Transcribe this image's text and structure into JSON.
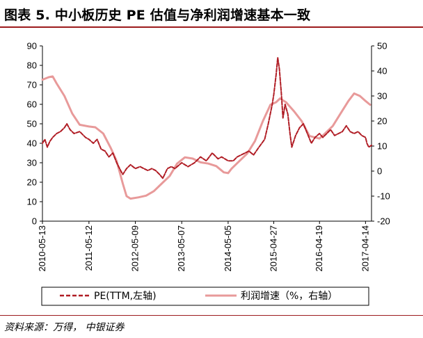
{
  "title": "图表 5. 中小板历史 PE 估值与净利润增速基本一致",
  "source": "资料来源：万得， 中银证券",
  "colors": {
    "pe": "#b01c24",
    "profit": "#e89a9a",
    "rule": "#9c1a1c"
  },
  "chart_data": {
    "type": "line",
    "title": "图表 5. 中小板历史 PE 估值与净利润增速基本一致",
    "x_tick_labels": [
      "2010-05-13",
      "2011-05-12",
      "2012-05-09",
      "2013-05-07",
      "2014-05-05",
      "2015-04-27",
      "2016-04-19",
      "2017-04-14"
    ],
    "x_range": [
      "2010-05-13",
      "2017-05-31"
    ],
    "y_left": {
      "ticks": [
        0,
        10,
        20,
        30,
        40,
        50,
        60,
        70,
        80,
        90
      ],
      "range": [
        0,
        90
      ]
    },
    "y_right": {
      "ticks": [
        -20,
        -10,
        0,
        10,
        20,
        30,
        40,
        50
      ],
      "range": [
        -20,
        50
      ]
    },
    "legend_position": "bottom",
    "grid": false,
    "series": [
      {
        "name": "PE(TTM,左轴)",
        "axis": "left",
        "style": "dashed",
        "points": [
          [
            "2010-05-13",
            40
          ],
          [
            "2010-06-01",
            42
          ],
          [
            "2010-06-20",
            38
          ],
          [
            "2010-07-10",
            41
          ],
          [
            "2010-08-01",
            43
          ],
          [
            "2010-09-01",
            45
          ],
          [
            "2010-10-01",
            46
          ],
          [
            "2010-11-01",
            48
          ],
          [
            "2010-11-20",
            50
          ],
          [
            "2010-12-15",
            47
          ],
          [
            "2011-01-15",
            45
          ],
          [
            "2011-03-01",
            46
          ],
          [
            "2011-04-15",
            43
          ],
          [
            "2011-05-12",
            42
          ],
          [
            "2011-06-15",
            40
          ],
          [
            "2011-07-15",
            42
          ],
          [
            "2011-08-15",
            37
          ],
          [
            "2011-09-15",
            36
          ],
          [
            "2011-10-15",
            33
          ],
          [
            "2011-11-15",
            35
          ],
          [
            "2011-12-15",
            30
          ],
          [
            "2012-01-15",
            26
          ],
          [
            "2012-02-01",
            24
          ],
          [
            "2012-03-01",
            27
          ],
          [
            "2012-04-01",
            29
          ],
          [
            "2012-05-09",
            27
          ],
          [
            "2012-06-15",
            28
          ],
          [
            "2012-07-15",
            27
          ],
          [
            "2012-08-15",
            26
          ],
          [
            "2012-09-15",
            27
          ],
          [
            "2012-10-15",
            26
          ],
          [
            "2012-11-15",
            24
          ],
          [
            "2012-12-10",
            22
          ],
          [
            "2013-01-15",
            27
          ],
          [
            "2013-02-15",
            28
          ],
          [
            "2013-03-15",
            27
          ],
          [
            "2013-05-07",
            30
          ],
          [
            "2013-06-25",
            28
          ],
          [
            "2013-08-15",
            30
          ],
          [
            "2013-10-01",
            33
          ],
          [
            "2013-11-15",
            31
          ],
          [
            "2014-01-01",
            35
          ],
          [
            "2014-02-15",
            32
          ],
          [
            "2014-03-15",
            33
          ],
          [
            "2014-05-05",
            31
          ],
          [
            "2014-06-15",
            31
          ],
          [
            "2014-07-15",
            33
          ],
          [
            "2014-09-15",
            35
          ],
          [
            "2014-10-15",
            36
          ],
          [
            "2014-11-20",
            34
          ],
          [
            "2015-01-01",
            38
          ],
          [
            "2015-02-15",
            42
          ],
          [
            "2015-03-15",
            50
          ],
          [
            "2015-04-15",
            60
          ],
          [
            "2015-04-27",
            65
          ],
          [
            "2015-05-15",
            75
          ],
          [
            "2015-05-28",
            84
          ],
          [
            "2015-06-10",
            78
          ],
          [
            "2015-06-25",
            66
          ],
          [
            "2015-07-08",
            53
          ],
          [
            "2015-07-25",
            60
          ],
          [
            "2015-08-15",
            55
          ],
          [
            "2015-09-01",
            45
          ],
          [
            "2015-09-15",
            38
          ],
          [
            "2015-10-15",
            44
          ],
          [
            "2015-11-15",
            48
          ],
          [
            "2015-12-15",
            50
          ],
          [
            "2016-01-15",
            45
          ],
          [
            "2016-02-15",
            40
          ],
          [
            "2016-03-15",
            43
          ],
          [
            "2016-04-19",
            45
          ],
          [
            "2016-05-15",
            43
          ],
          [
            "2016-06-15",
            45
          ],
          [
            "2016-07-15",
            47
          ],
          [
            "2016-08-15",
            44
          ],
          [
            "2016-09-15",
            45
          ],
          [
            "2016-10-15",
            46
          ],
          [
            "2016-11-15",
            49
          ],
          [
            "2016-12-15",
            46
          ],
          [
            "2017-01-15",
            45
          ],
          [
            "2017-02-15",
            46
          ],
          [
            "2017-03-15",
            44
          ],
          [
            "2017-04-14",
            43
          ],
          [
            "2017-04-25",
            40
          ],
          [
            "2017-05-10",
            38
          ],
          [
            "2017-05-31",
            39
          ]
        ]
      },
      {
        "name": "利润增速（%，右轴）",
        "axis": "right",
        "style": "solid",
        "points": [
          [
            "2010-05-13",
            36.5
          ],
          [
            "2010-07-01",
            37.5
          ],
          [
            "2010-08-01",
            37.8
          ],
          [
            "2010-09-01",
            35
          ],
          [
            "2010-11-01",
            30
          ],
          [
            "2011-01-01",
            23
          ],
          [
            "2011-03-01",
            18.5
          ],
          [
            "2011-05-12",
            17.8
          ],
          [
            "2011-07-01",
            17.5
          ],
          [
            "2011-09-01",
            15
          ],
          [
            "2011-11-01",
            9
          ],
          [
            "2011-12-15",
            4
          ],
          [
            "2012-02-01",
            -5
          ],
          [
            "2012-03-01",
            -10
          ],
          [
            "2012-04-01",
            -11
          ],
          [
            "2012-06-01",
            -10.5
          ],
          [
            "2012-08-01",
            -9.8
          ],
          [
            "2012-10-01",
            -8
          ],
          [
            "2012-12-01",
            -5
          ],
          [
            "2013-02-01",
            -2
          ],
          [
            "2013-04-01",
            3
          ],
          [
            "2013-06-01",
            5.5
          ],
          [
            "2013-08-01",
            5
          ],
          [
            "2013-10-01",
            3.5
          ],
          [
            "2013-12-01",
            3
          ],
          [
            "2014-02-01",
            2
          ],
          [
            "2014-04-01",
            -0.5
          ],
          [
            "2014-05-05",
            -0.8
          ],
          [
            "2014-06-01",
            1
          ],
          [
            "2014-08-01",
            4
          ],
          [
            "2014-10-01",
            7
          ],
          [
            "2014-12-01",
            12
          ],
          [
            "2015-02-01",
            20
          ],
          [
            "2015-04-01",
            26.5
          ],
          [
            "2015-05-15",
            27.5
          ],
          [
            "2015-06-15",
            29
          ],
          [
            "2015-08-01",
            27.5
          ],
          [
            "2015-10-01",
            24
          ],
          [
            "2015-12-01",
            20
          ],
          [
            "2016-02-01",
            14
          ],
          [
            "2016-04-19",
            13
          ],
          [
            "2016-06-01",
            15
          ],
          [
            "2016-08-01",
            18
          ],
          [
            "2016-10-01",
            23
          ],
          [
            "2016-12-01",
            28
          ],
          [
            "2017-01-15",
            31
          ],
          [
            "2017-03-01",
            30
          ],
          [
            "2017-04-14",
            28
          ],
          [
            "2017-05-20",
            26.5
          ]
        ]
      }
    ]
  }
}
